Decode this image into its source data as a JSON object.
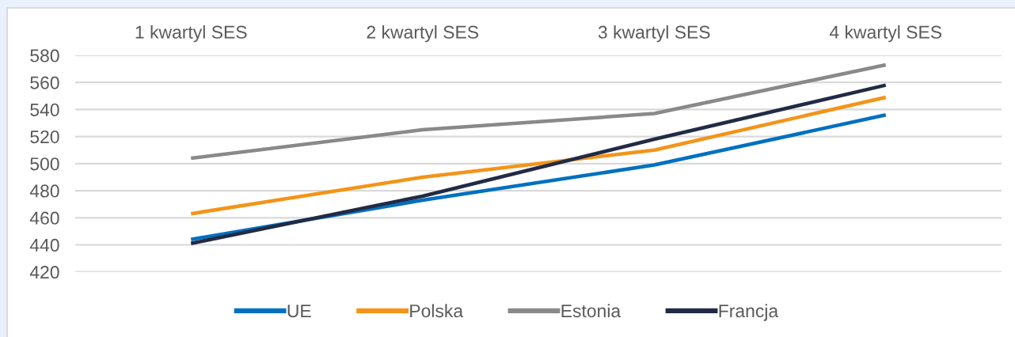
{
  "chart_data": {
    "type": "line",
    "categories": [
      "1 kwartyl SES",
      "2 kwartyl SES",
      "3 kwartyl SES",
      "4 kwartyl SES"
    ],
    "series": [
      {
        "name": "UE",
        "color": "#0070c0",
        "values": [
          444,
          473,
          499,
          536
        ]
      },
      {
        "name": "Polska",
        "color": "#f39419",
        "values": [
          463,
          490,
          510,
          549
        ]
      },
      {
        "name": "Estonia",
        "color": "#898989",
        "values": [
          504,
          525,
          537,
          573
        ]
      },
      {
        "name": "Francja",
        "color": "#222b45",
        "values": [
          441,
          476,
          518,
          558
        ]
      }
    ],
    "ylim": [
      420,
      580
    ],
    "yticks": [
      420,
      440,
      460,
      480,
      500,
      520,
      540,
      560,
      580
    ],
    "grid": "y",
    "legend": "bottom",
    "line_style": "solid"
  }
}
